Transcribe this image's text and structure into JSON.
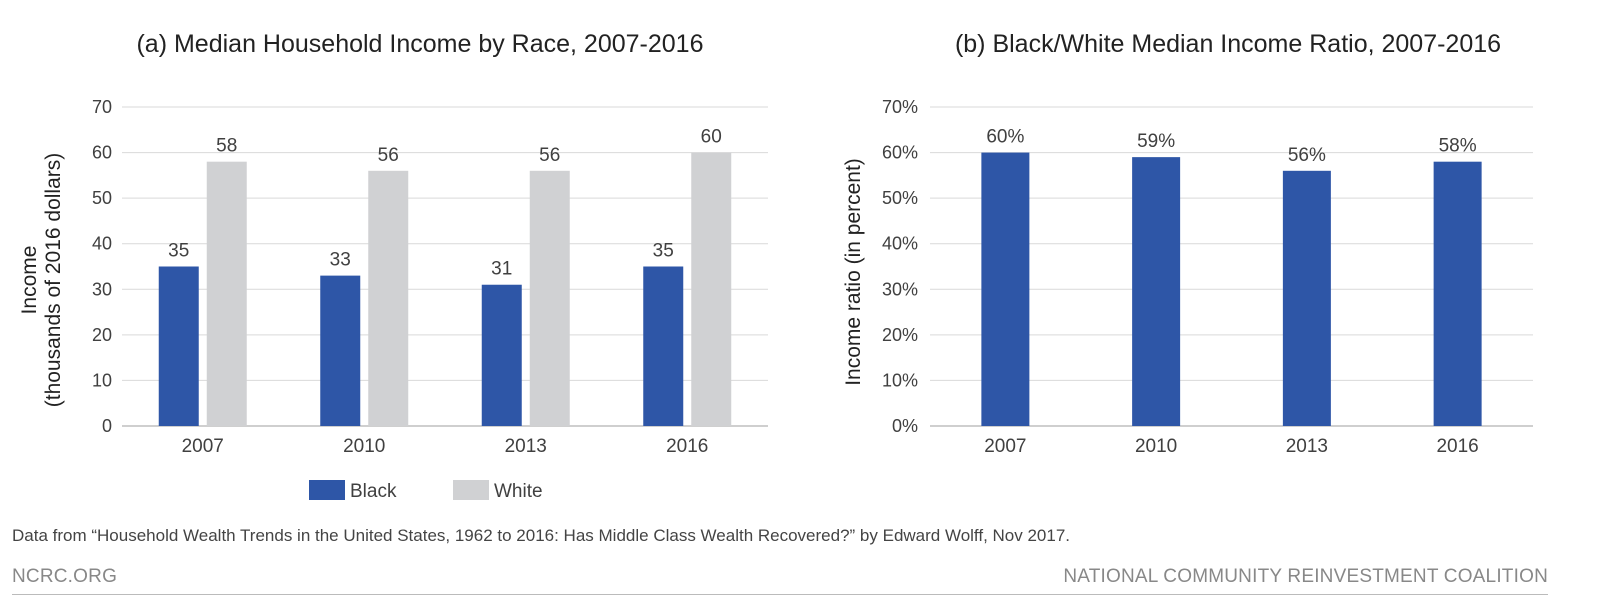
{
  "colors": {
    "black_series": "#2e56a7",
    "white_series": "#d0d1d3",
    "grid": "#d9d9d9",
    "axis_text": "#404040"
  },
  "chart_data": [
    {
      "type": "bar",
      "title": "(a) Median Household Income by Race, 2007-2016",
      "ylabel": [
        "Income",
        "(thousands of 2016 dollars)"
      ],
      "xlabel": "",
      "categories": [
        "2007",
        "2010",
        "2013",
        "2016"
      ],
      "series": [
        {
          "name": "Black",
          "values": [
            35,
            33,
            31,
            35
          ],
          "labels": [
            "35",
            "33",
            "31",
            "35"
          ],
          "color": "#2e56a7"
        },
        {
          "name": "White",
          "values": [
            58,
            56,
            56,
            60
          ],
          "labels": [
            "58",
            "56",
            "56",
            "60"
          ],
          "color": "#d0d1d3"
        }
      ],
      "ylim": [
        0,
        70
      ],
      "yticks": [
        "0",
        "10",
        "20",
        "30",
        "40",
        "50",
        "60",
        "70"
      ],
      "grid": true,
      "legend": "bottom"
    },
    {
      "type": "bar",
      "title": "(b) Black/White Median Income Ratio, 2007-2016",
      "ylabel": [
        "Income ratio (in percent)"
      ],
      "xlabel": "",
      "categories": [
        "2007",
        "2010",
        "2013",
        "2016"
      ],
      "series": [
        {
          "values": [
            60,
            59,
            56,
            58
          ],
          "labels": [
            "60%",
            "59%",
            "56%",
            "58%"
          ],
          "color": "#2e56a7"
        }
      ],
      "ylim": [
        0,
        70
      ],
      "yticks": [
        "0%",
        "10%",
        "20%",
        "30%",
        "40%",
        "50%",
        "60%",
        "70%"
      ],
      "grid": true,
      "legend": "none"
    }
  ],
  "footer": {
    "source": "Data from “Household Wealth Trends in the United States, 1962 to 2016: Has Middle Class Wealth Recovered?” by Edward Wolff, Nov 2017.",
    "left": "NCRC.ORG",
    "right": "NATIONAL COMMUNITY REINVESTMENT COALITION"
  }
}
